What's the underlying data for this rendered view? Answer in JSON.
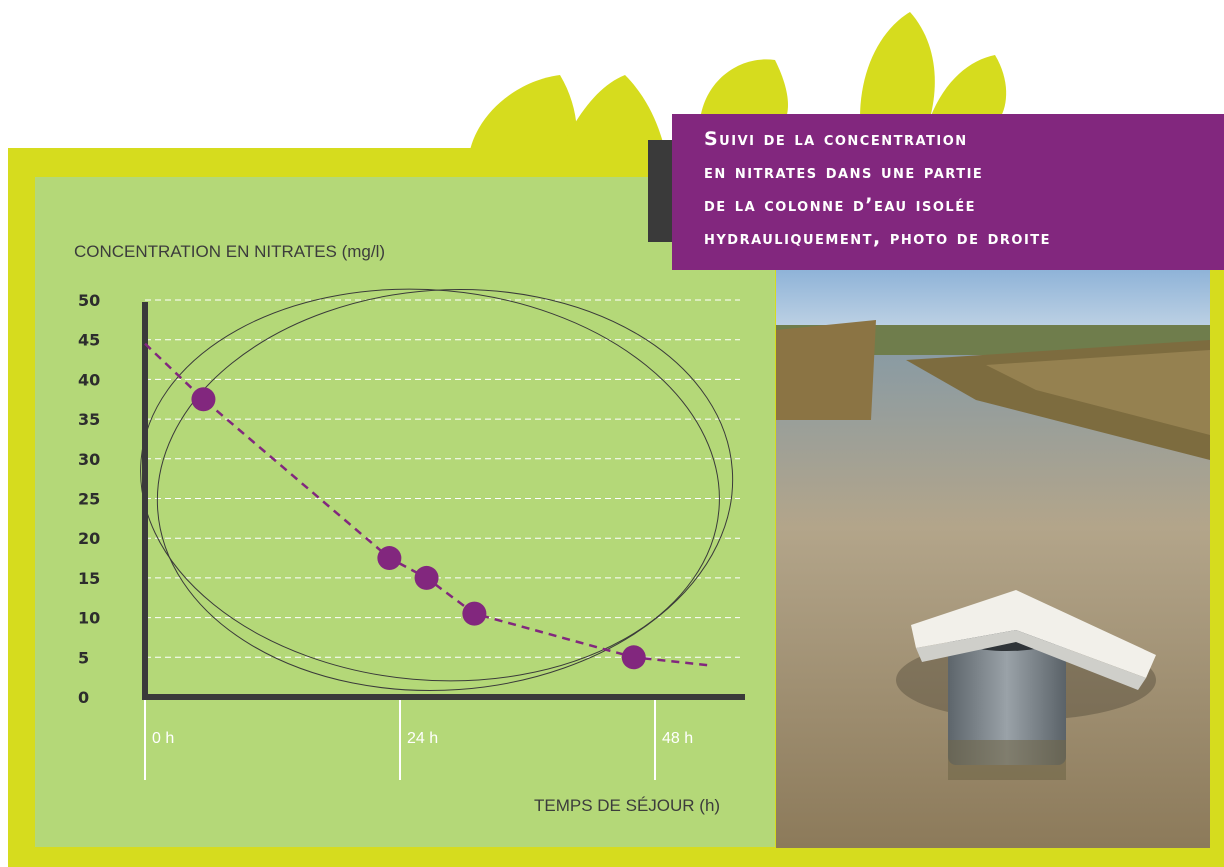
{
  "title": {
    "lines": [
      "Suivi de la concentration",
      "en nitrates dans une partie",
      "de la colonne d’eau isolée",
      "hydrauliquement, photo de droite"
    ]
  },
  "photo": {
    "subject": "photo of a marsh channel with a metal cylinder and white lid"
  },
  "colors": {
    "frame": "#d6dc1e",
    "panel": "#b4d878",
    "title_bg": "#82277e",
    "points": "#82277e",
    "axis": "#3a3a3a"
  },
  "chart_data": {
    "type": "line",
    "ylabel": "CONCENTRATION EN NITRATES (mg/l)",
    "xlabel": "TEMPS DE SÉJOUR (h)",
    "ylim": [
      0,
      50
    ],
    "xlim": [
      0,
      56
    ],
    "y_ticks": [
      "0",
      "5",
      "10",
      "15",
      "20",
      "25",
      "30",
      "35",
      "40",
      "45",
      "50"
    ],
    "x_ticks": [
      {
        "value": 0,
        "label": "0 h"
      },
      {
        "value": 24,
        "label": "24 h"
      },
      {
        "value": 48,
        "label": "48 h"
      }
    ],
    "grid": true,
    "series": [
      {
        "points": [
          [
            5.5,
            37.5
          ],
          [
            23,
            17.5
          ],
          [
            26.5,
            15
          ],
          [
            31,
            10.5
          ],
          [
            46,
            5
          ]
        ],
        "trend": [
          [
            0,
            44.5
          ],
          [
            5.5,
            37.5
          ],
          [
            23,
            17.5
          ],
          [
            26.5,
            15
          ],
          [
            31,
            10.5
          ],
          [
            46,
            5
          ],
          [
            53,
            4
          ]
        ]
      }
    ]
  }
}
